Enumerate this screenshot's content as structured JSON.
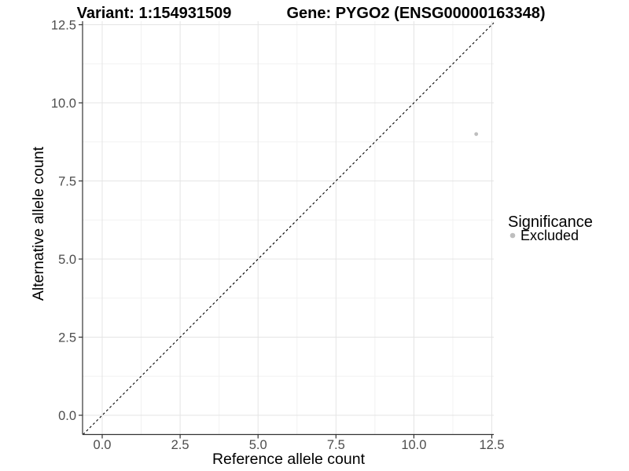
{
  "chart_data": {
    "type": "scatter",
    "title_left": "Variant: 1:154931509",
    "title_right": "Gene: PYGO2 (ENSG00000163348)",
    "xlabel": "Reference allele count",
    "ylabel": "Alternative allele count",
    "x_ticks": [
      "0.0",
      "2.5",
      "5.0",
      "7.5",
      "10.0",
      "12.5"
    ],
    "y_ticks": [
      "0.0",
      "2.5",
      "5.0",
      "7.5",
      "10.0",
      "12.5"
    ],
    "xlim": [
      -0.63,
      12.56
    ],
    "ylim": [
      -0.62,
      12.61
    ],
    "grid": true,
    "series": [
      {
        "name": "Excluded",
        "color": "#bebebe",
        "points": [
          {
            "x": 12,
            "y": 9
          }
        ]
      }
    ],
    "reference_line": {
      "style": "dashed",
      "slope": 1,
      "intercept": 0,
      "color": "#000000"
    },
    "legend": {
      "position": "right",
      "title": "Significance",
      "entries": [
        {
          "label": "Excluded",
          "color": "#bebebe"
        }
      ]
    },
    "colors": {
      "background": "#ffffff",
      "grid_major": "#e4e4e4",
      "grid_minor": "#f2f2f2",
      "axis_line": "#333333",
      "tick_label": "#4d4d4d",
      "point": "#bebebe"
    }
  }
}
